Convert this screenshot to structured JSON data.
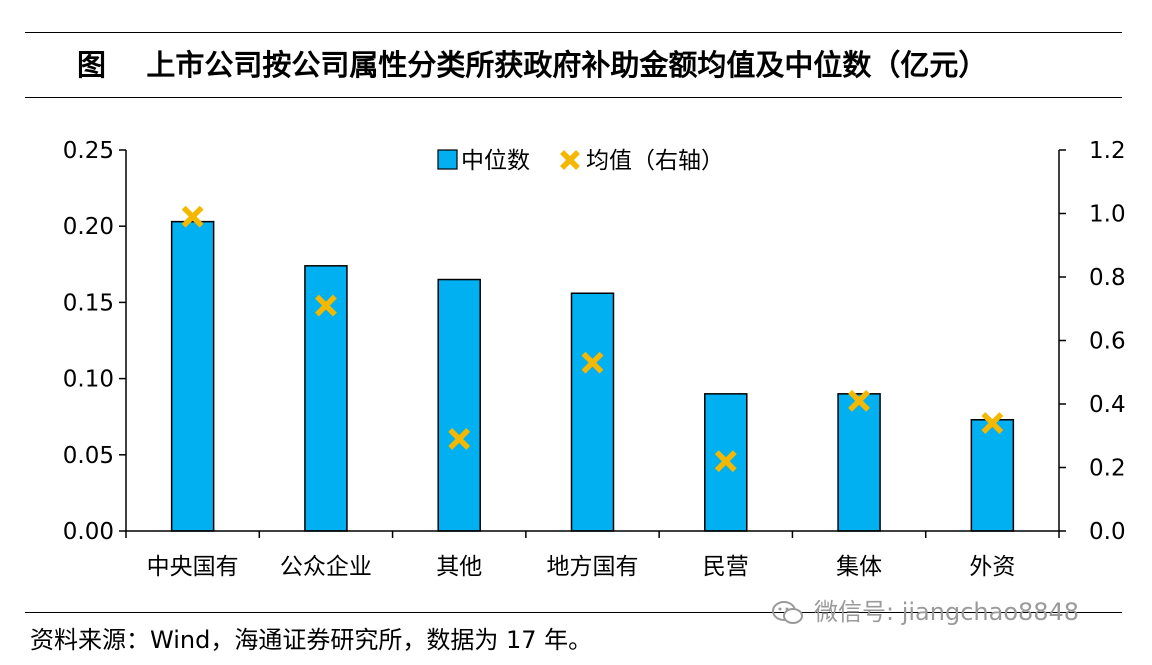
{
  "title": "图    上市公司按公司属性分类所获政府补助金额均值及中位数（亿元）",
  "source": "资料来源：Wind，海通证券研究所，数据为 17 年。",
  "watermark": "微信号: jiangchao8848",
  "colors": {
    "bar": "#00b0f0",
    "bar_border": "#000000",
    "marker": "#f5b800",
    "axis": "#000000",
    "watermark": "#9a9a9a"
  },
  "chart_data": {
    "type": "bar",
    "categories": [
      "中央国有",
      "公众企业",
      "其他",
      "地方国有",
      "民营",
      "集体",
      "外资"
    ],
    "series": [
      {
        "name": "中位数",
        "type": "bar",
        "axis": "left",
        "values": [
          0.203,
          0.174,
          0.165,
          0.156,
          0.09,
          0.09,
          0.073
        ]
      },
      {
        "name": "均值（右轴）",
        "type": "scatter",
        "marker": "x",
        "axis": "right",
        "values": [
          0.99,
          0.71,
          0.29,
          0.53,
          0.22,
          0.41,
          0.34
        ]
      }
    ],
    "left_axis": {
      "ylim": [
        0,
        0.25
      ],
      "ticks": [
        "0.00",
        "0.05",
        "0.10",
        "0.15",
        "0.20",
        "0.25"
      ]
    },
    "right_axis": {
      "ylim": [
        0,
        1.2
      ],
      "ticks": [
        "0.0",
        "0.2",
        "0.4",
        "0.6",
        "0.8",
        "1.0",
        "1.2"
      ]
    },
    "legend_position": "top-center",
    "grid": false
  }
}
